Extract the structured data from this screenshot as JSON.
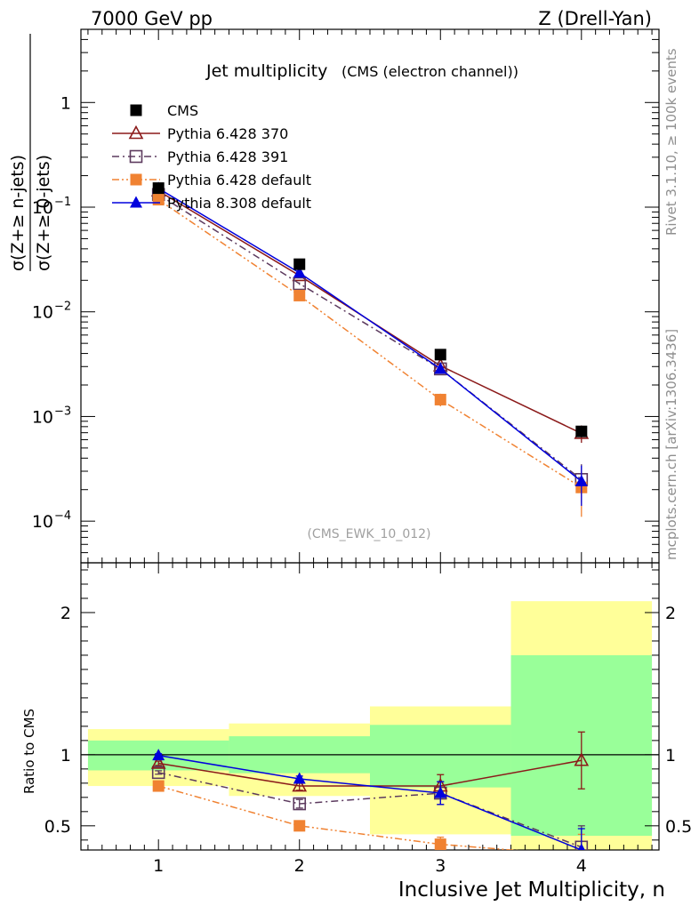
{
  "header": {
    "left": "7000 GeV pp",
    "right": "Z (Drell-Yan)"
  },
  "side_labels": {
    "rivet": "Rivet 3.1.10, ≥ 100k events",
    "mcplots": "mcplots.cern.ch [arXiv:1306.3436]"
  },
  "chart_data": [
    {
      "type": "scatter",
      "title": "Jet multiplicity",
      "subtitle": "(CMS (electron channel))",
      "watermark": "(CMS_EWK_10_012)",
      "ylabel_num": "σ(Z+≥ n-jets)",
      "ylabel_den": "σ(Z+≥ 0-jets)",
      "yscale": "log",
      "xlim": [
        0.45,
        4.55
      ],
      "ylim": [
        4e-05,
        5
      ],
      "x_ticks": [
        1,
        2,
        3,
        4
      ],
      "y_ticks": [
        {
          "value": 1,
          "label": "1"
        },
        {
          "value": 0.1,
          "base": "10",
          "exp": "−1"
        },
        {
          "value": 0.01,
          "base": "10",
          "exp": "−2"
        },
        {
          "value": 0.001,
          "base": "10",
          "exp": "−3"
        },
        {
          "value": 0.0001,
          "base": "10",
          "exp": "−4"
        }
      ],
      "legend_position": "top-left",
      "series": [
        {
          "name": "CMS",
          "color": "#000000",
          "marker": "square",
          "line": "none",
          "x": [
            1,
            2,
            3,
            4
          ],
          "y": [
            0.152,
            0.0285,
            0.0039,
            0.00072
          ],
          "err": [
            0.005,
            0.0015,
            0.0003,
            6e-05
          ]
        },
        {
          "name": "Pythia 6.428 370",
          "color": "#8b1a1a",
          "marker": "triangle-open",
          "line": "solid",
          "x": [
            1,
            2,
            3,
            4
          ],
          "y": [
            0.143,
            0.0222,
            0.00305,
            0.00069
          ],
          "err": [
            0.002,
            0.0006,
            0.0002,
            0.00013
          ]
        },
        {
          "name": "Pythia 6.428 391",
          "color": "#5c3a5e",
          "marker": "square-open",
          "line": "dashdot",
          "x": [
            1,
            2,
            3,
            4
          ],
          "y": [
            0.132,
            0.0186,
            0.00285,
            0.00025
          ],
          "err": [
            0.002,
            0.0005,
            0.0002,
            0.0001
          ]
        },
        {
          "name": "Pythia 6.428 default",
          "color": "#f08232",
          "marker": "square",
          "line": "dashdotdot",
          "x": [
            1,
            2,
            3,
            4
          ],
          "y": [
            0.118,
            0.0143,
            0.00145,
            0.00021
          ],
          "err": [
            0.002,
            0.0005,
            0.0002,
            0.0001
          ]
        },
        {
          "name": "Pythia 8.308 default",
          "color": "#0000dd",
          "marker": "triangle",
          "line": "solid",
          "x": [
            1,
            2,
            3,
            4
          ],
          "y": [
            0.151,
            0.0236,
            0.00285,
            0.00024
          ],
          "err": [
            0.002,
            0.0005,
            0.0002,
            0.0001
          ]
        }
      ]
    },
    {
      "type": "line",
      "ylabel": "Ratio to CMS",
      "xlabel": "Inclusive Jet Multiplicity, n",
      "xlim": [
        0.45,
        4.55
      ],
      "ylim": [
        0.33,
        2.35
      ],
      "x_ticks": [
        1,
        2,
        3,
        4
      ],
      "y_ticks": [
        {
          "value": 0.5,
          "label": "0.5"
        },
        {
          "value": 1,
          "label": "1"
        },
        {
          "value": 2,
          "label": "2"
        }
      ],
      "bands": [
        {
          "x0": 0.5,
          "x1": 1.5,
          "yellow": [
            0.78,
            1.18
          ],
          "green": [
            0.89,
            1.1
          ]
        },
        {
          "x0": 1.5,
          "x1": 2.5,
          "yellow": [
            0.71,
            1.22
          ],
          "green": [
            0.87,
            1.13
          ]
        },
        {
          "x0": 2.5,
          "x1": 3.5,
          "yellow": [
            0.44,
            1.34
          ],
          "green": [
            0.77,
            1.21
          ]
        },
        {
          "x0": 3.5,
          "x1": 4.5,
          "yellow": [
            0.2,
            2.08
          ],
          "green": [
            0.43,
            1.7
          ]
        }
      ],
      "band_colors": {
        "yellow": "#ffff99",
        "green": "#99ff99"
      },
      "series": [
        {
          "name": "Pythia 6.428 370",
          "x": [
            1,
            2,
            3,
            4
          ],
          "y": [
            0.94,
            0.78,
            0.78,
            0.96
          ],
          "err": [
            0.015,
            0.03,
            0.08,
            0.2
          ]
        },
        {
          "name": "Pythia 6.428 391",
          "x": [
            1,
            2,
            3,
            4
          ],
          "y": [
            0.875,
            0.655,
            0.73,
            0.35
          ],
          "err": [
            0.012,
            0.03,
            0.08,
            0.15
          ]
        },
        {
          "name": "Pythia 6.428 default",
          "x": [
            1,
            2,
            3,
            4
          ],
          "y": [
            0.78,
            0.5,
            0.37,
            0.29
          ],
          "err": [
            0.01,
            0.03,
            0.05,
            0.15
          ]
        },
        {
          "name": "Pythia 8.308 default",
          "x": [
            1,
            2,
            3,
            4
          ],
          "y": [
            0.995,
            0.83,
            0.73,
            0.33
          ],
          "err": [
            0.012,
            0.02,
            0.08,
            0.15
          ]
        }
      ]
    }
  ]
}
